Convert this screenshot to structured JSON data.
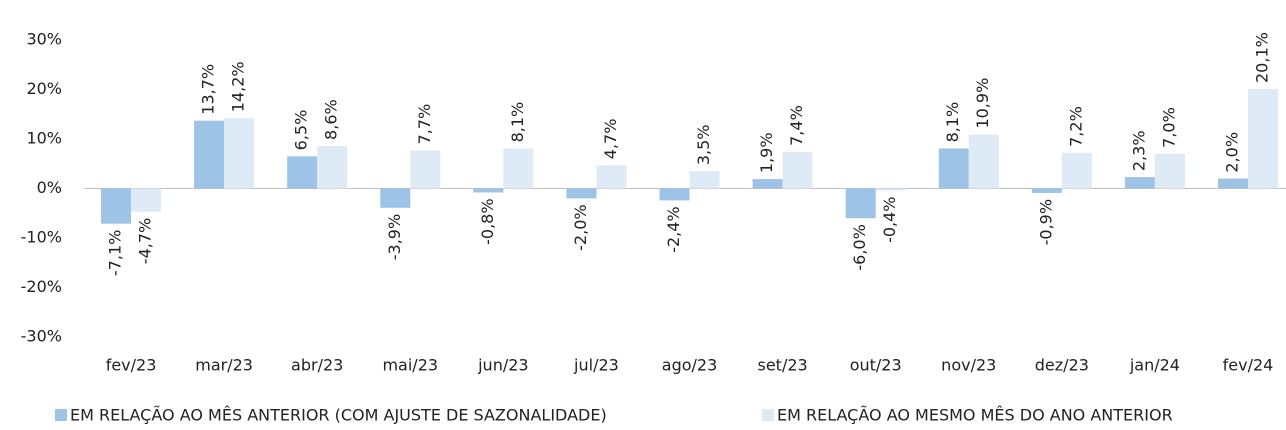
{
  "chart_data": {
    "type": "bar",
    "categories": [
      "fev/23",
      "mar/23",
      "abr/23",
      "mai/23",
      "jun/23",
      "jul/23",
      "ago/23",
      "set/23",
      "out/23",
      "nov/23",
      "dez/23",
      "jan/24",
      "fev/24"
    ],
    "series": [
      {
        "name": "EM RELAÇÃO AO MÊS ANTERIOR (COM AJUSTE DE SAZONALIDADE)",
        "color": "#9dc3e6",
        "values": [
          -7.1,
          13.7,
          6.5,
          -3.9,
          -0.8,
          -2.0,
          -2.4,
          1.9,
          -6.0,
          8.1,
          -0.9,
          2.3,
          2.0
        ],
        "value_labels": [
          "-7,1%",
          "13,7%",
          "6,5%",
          "-3,9%",
          "-0,8%",
          "-2,0%",
          "-2,4%",
          "1,9%",
          "-6,0%",
          "8,1%",
          "-0,9%",
          "2,3%",
          "2,0%"
        ]
      },
      {
        "name": "EM RELAÇÃO AO MESMO MÊS DO ANO ANTERIOR",
        "color": "#deebf7",
        "values": [
          -4.7,
          14.2,
          8.6,
          7.7,
          8.1,
          4.7,
          3.5,
          7.4,
          -0.4,
          10.9,
          7.2,
          7.0,
          20.1
        ],
        "value_labels": [
          "-4,7%",
          "14,2%",
          "8,6%",
          "7,7%",
          "8,1%",
          "4,7%",
          "3,5%",
          "7,4%",
          "-0,4%",
          "10,9%",
          "7,2%",
          "7,0%",
          "20,1%"
        ]
      }
    ],
    "ylim": [
      -30,
      30
    ],
    "yticks": [
      {
        "value": -30,
        "label": "-30%"
      },
      {
        "value": -20,
        "label": "-20%"
      },
      {
        "value": -10,
        "label": "-10%"
      },
      {
        "value": 0,
        "label": "0%"
      },
      {
        "value": 10,
        "label": "10%"
      },
      {
        "value": 20,
        "label": "20%"
      },
      {
        "value": 30,
        "label": "30%"
      }
    ],
    "legend": "bottom"
  }
}
